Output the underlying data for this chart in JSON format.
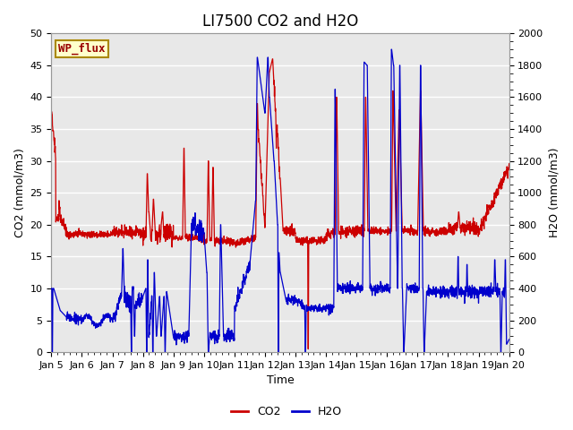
{
  "title": "LI7500 CO2 and H2O",
  "xlabel": "Time",
  "ylabel_left": "CO2 (mmol/m3)",
  "ylabel_right": "H2O (mmol/m3)",
  "x_tick_labels": [
    "Jan 5",
    "Jan 6",
    "Jan 7",
    "Jan 8",
    "Jan 9",
    "Jan 10",
    "Jan 11",
    "Jan 12",
    "Jan 13",
    "Jan 14",
    "Jan 15",
    "Jan 16",
    "Jan 17",
    "Jan 18",
    "Jan 19",
    "Jan 20"
  ],
  "ylim_left": [
    0,
    50
  ],
  "ylim_right": [
    0,
    2000
  ],
  "yticks_left": [
    0,
    5,
    10,
    15,
    20,
    25,
    30,
    35,
    40,
    45,
    50
  ],
  "yticks_right": [
    0,
    200,
    400,
    600,
    800,
    1000,
    1200,
    1400,
    1600,
    1800,
    2000
  ],
  "co2_color": "#CC0000",
  "h2o_color": "#0000CC",
  "legend_box_facecolor": "#FFFFCC",
  "legend_box_edgecolor": "#AA8800",
  "legend_text": "WP_flux",
  "plot_bg_color": "#E8E8E8",
  "grid_color": "#FFFFFF",
  "title_fontsize": 12,
  "axis_fontsize": 9,
  "tick_fontsize": 8,
  "linewidth_co2": 0.9,
  "linewidth_h2o": 0.9
}
